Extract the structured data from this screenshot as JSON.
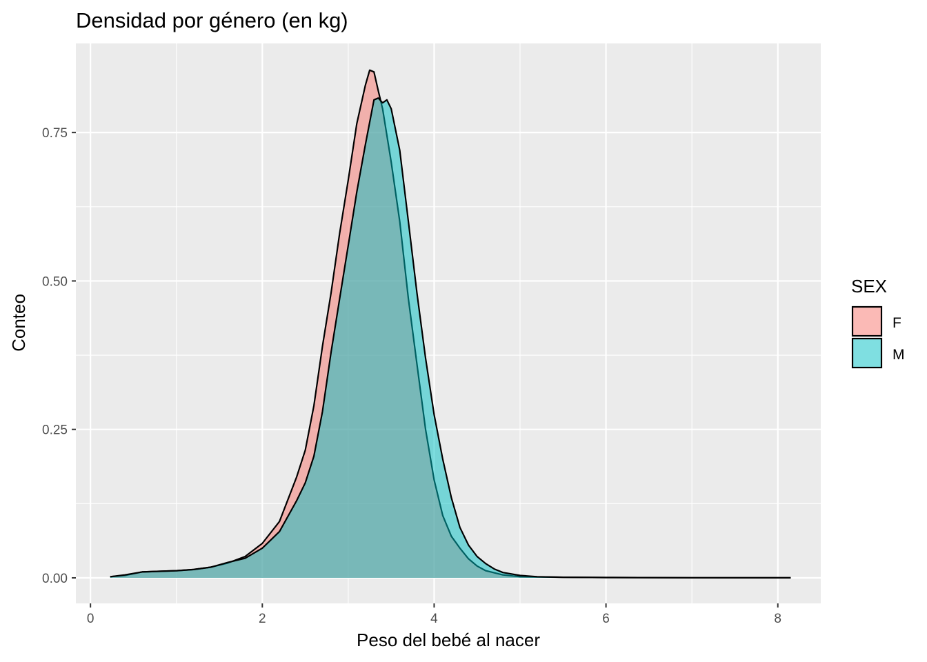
{
  "chart_data": {
    "type": "area",
    "title": "Densidad por género (en kg)",
    "xlabel": "Peso del bebé al nacer",
    "ylabel": "Conteo",
    "xlim": [
      -0.17,
      8.5
    ],
    "ylim": [
      -0.043,
      0.9
    ],
    "x_ticks": [
      0,
      2,
      4,
      6,
      8
    ],
    "x_tick_labels": [
      "0",
      "2",
      "4",
      "6",
      "8"
    ],
    "y_ticks": [
      0.0,
      0.25,
      0.5,
      0.75
    ],
    "y_tick_labels": [
      "0.00",
      "0.25",
      "0.50",
      "0.75"
    ],
    "grid": true,
    "legend": {
      "title": "SEX",
      "position": "right"
    },
    "series": [
      {
        "name": "F",
        "fill": "#F8766D",
        "points": [
          [
            0.23,
            0.002
          ],
          [
            0.4,
            0.004
          ],
          [
            0.6,
            0.01
          ],
          [
            0.8,
            0.011
          ],
          [
            1.0,
            0.012
          ],
          [
            1.2,
            0.014
          ],
          [
            1.4,
            0.018
          ],
          [
            1.6,
            0.025
          ],
          [
            1.8,
            0.036
          ],
          [
            2.0,
            0.058
          ],
          [
            2.2,
            0.095
          ],
          [
            2.4,
            0.17
          ],
          [
            2.5,
            0.215
          ],
          [
            2.6,
            0.29
          ],
          [
            2.7,
            0.39
          ],
          [
            2.8,
            0.48
          ],
          [
            2.9,
            0.58
          ],
          [
            3.0,
            0.67
          ],
          [
            3.1,
            0.765
          ],
          [
            3.2,
            0.83
          ],
          [
            3.25,
            0.855
          ],
          [
            3.3,
            0.852
          ],
          [
            3.35,
            0.82
          ],
          [
            3.4,
            0.79
          ],
          [
            3.5,
            0.7
          ],
          [
            3.6,
            0.6
          ],
          [
            3.7,
            0.47
          ],
          [
            3.8,
            0.36
          ],
          [
            3.9,
            0.25
          ],
          [
            4.0,
            0.165
          ],
          [
            4.1,
            0.105
          ],
          [
            4.2,
            0.07
          ],
          [
            4.3,
            0.05
          ],
          [
            4.4,
            0.032
          ],
          [
            4.5,
            0.02
          ],
          [
            4.6,
            0.012
          ],
          [
            4.8,
            0.005
          ],
          [
            5.0,
            0.002
          ],
          [
            5.5,
            0.001
          ],
          [
            6.0,
            0.0005
          ],
          [
            7.0,
            0.0002
          ],
          [
            8.15,
            0.0001
          ]
        ]
      },
      {
        "name": "M",
        "fill": "#00BFC4",
        "points": [
          [
            0.23,
            0.002
          ],
          [
            0.4,
            0.005
          ],
          [
            0.6,
            0.01
          ],
          [
            0.8,
            0.011
          ],
          [
            1.0,
            0.012
          ],
          [
            1.2,
            0.014
          ],
          [
            1.4,
            0.018
          ],
          [
            1.6,
            0.026
          ],
          [
            1.8,
            0.033
          ],
          [
            2.0,
            0.05
          ],
          [
            2.2,
            0.078
          ],
          [
            2.4,
            0.13
          ],
          [
            2.5,
            0.16
          ],
          [
            2.6,
            0.205
          ],
          [
            2.7,
            0.28
          ],
          [
            2.8,
            0.38
          ],
          [
            2.9,
            0.47
          ],
          [
            3.0,
            0.56
          ],
          [
            3.1,
            0.65
          ],
          [
            3.2,
            0.73
          ],
          [
            3.3,
            0.805
          ],
          [
            3.35,
            0.808
          ],
          [
            3.4,
            0.8
          ],
          [
            3.45,
            0.805
          ],
          [
            3.5,
            0.79
          ],
          [
            3.6,
            0.72
          ],
          [
            3.7,
            0.6
          ],
          [
            3.8,
            0.48
          ],
          [
            3.9,
            0.37
          ],
          [
            4.0,
            0.275
          ],
          [
            4.1,
            0.2
          ],
          [
            4.2,
            0.135
          ],
          [
            4.3,
            0.085
          ],
          [
            4.4,
            0.055
          ],
          [
            4.5,
            0.036
          ],
          [
            4.6,
            0.024
          ],
          [
            4.7,
            0.015
          ],
          [
            4.8,
            0.009
          ],
          [
            5.0,
            0.004
          ],
          [
            5.2,
            0.002
          ],
          [
            5.5,
            0.001
          ],
          [
            6.0,
            0.0005
          ],
          [
            7.0,
            0.0002
          ],
          [
            8.15,
            0.0001
          ]
        ]
      }
    ]
  }
}
